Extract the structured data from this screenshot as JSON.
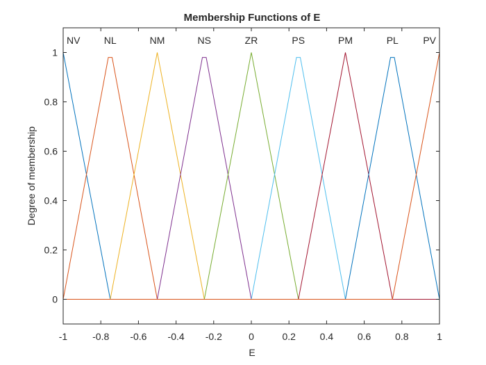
{
  "chart_data": {
    "type": "line",
    "title": "Membership Functions of E",
    "xlabel": "E",
    "ylabel": "Degree of membership",
    "xlim": [
      -1,
      1
    ],
    "ylim": [
      -0.1,
      1.1
    ],
    "xticks": [
      "-1",
      "-0.8",
      "-0.6",
      "-0.4",
      "-0.2",
      "0",
      "0.2",
      "0.4",
      "0.6",
      "0.8",
      "1"
    ],
    "yticks": [
      "0",
      "0.2",
      "0.4",
      "0.6",
      "0.8",
      "1"
    ],
    "grid": false,
    "series": [
      {
        "name": "NV",
        "color": "#0072BD",
        "x": [
          -1,
          -1,
          -0.75
        ],
        "y": [
          0,
          1,
          0
        ]
      },
      {
        "name": "NL",
        "color": "#D95319",
        "x": [
          -1,
          -0.76,
          -0.74,
          -0.5
        ],
        "y": [
          0,
          0.98,
          0.98,
          0
        ]
      },
      {
        "name": "NM",
        "color": "#EDB120",
        "x": [
          -0.75,
          -0.5,
          -0.25
        ],
        "y": [
          0,
          1,
          0
        ]
      },
      {
        "name": "NS",
        "color": "#7E2F8E",
        "x": [
          -0.5,
          -0.26,
          -0.24,
          0
        ],
        "y": [
          0,
          0.98,
          0.98,
          0
        ]
      },
      {
        "name": "ZR",
        "color": "#77AC30",
        "x": [
          -0.25,
          0,
          0.25
        ],
        "y": [
          0,
          1,
          0
        ]
      },
      {
        "name": "PS",
        "color": "#4DBEEE",
        "x": [
          0,
          0.24,
          0.26,
          0.5
        ],
        "y": [
          0,
          0.98,
          0.98,
          0
        ]
      },
      {
        "name": "PM",
        "color": "#A2142F",
        "x": [
          0.25,
          0.5,
          0.75
        ],
        "y": [
          0,
          1,
          0
        ]
      },
      {
        "name": "PL",
        "color": "#0072BD",
        "x": [
          0.5,
          0.74,
          0.76,
          1
        ],
        "y": [
          0,
          0.98,
          0.98,
          0
        ]
      },
      {
        "name": "PV",
        "color": "#D95319",
        "x": [
          0.75,
          1,
          1
        ],
        "y": [
          0,
          1,
          0
        ]
      }
    ]
  }
}
